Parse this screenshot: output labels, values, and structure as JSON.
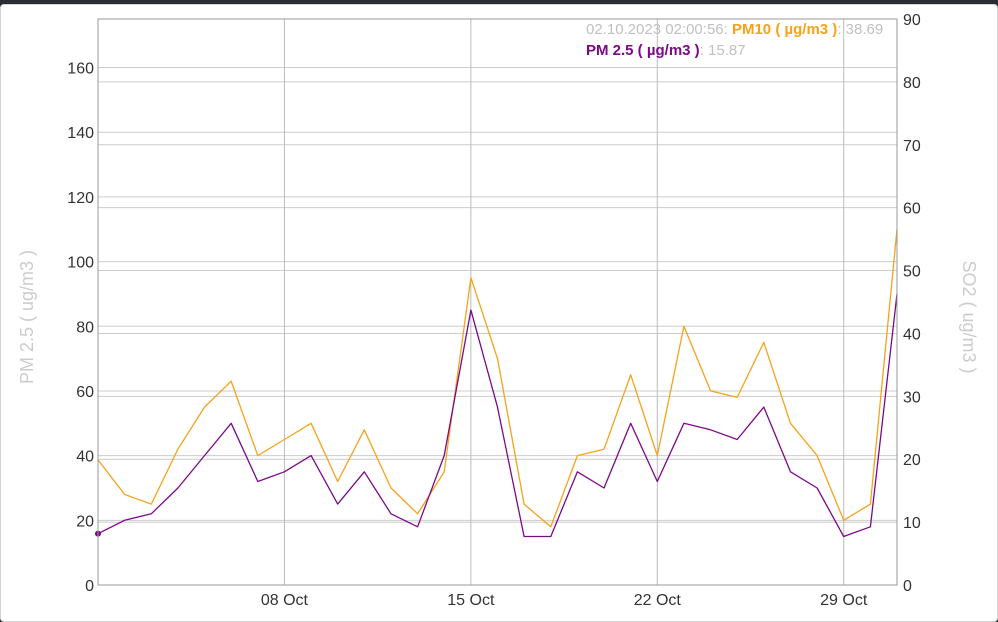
{
  "chart_data": {
    "type": "line",
    "x_range": [
      "2023-10-01",
      "2023-10-31"
    ],
    "x_ticks": [
      {
        "date": "2023-10-08",
        "label": "08 Oct"
      },
      {
        "date": "2023-10-15",
        "label": "15 Oct"
      },
      {
        "date": "2023-10-22",
        "label": "22 Oct"
      },
      {
        "date": "2023-10-29",
        "label": "29 Oct"
      }
    ],
    "y_left": {
      "label": "PM 2.5 ( ug/m3 )",
      "ylim": [
        0,
        175
      ],
      "ticks": [
        0,
        20,
        40,
        60,
        80,
        100,
        120,
        140,
        160
      ]
    },
    "y_right": {
      "label": "SO2 ( ug/m3 )",
      "ylim": [
        0,
        90
      ],
      "ticks": [
        0,
        10,
        20,
        30,
        40,
        50,
        60,
        70,
        80,
        90
      ]
    },
    "grid": true,
    "series": [
      {
        "name": "PM10 ( µg/m3 )",
        "color": "#f5a31a",
        "axis": "left",
        "x": [
          "2023-10-01",
          "2023-10-02",
          "2023-10-03",
          "2023-10-04",
          "2023-10-05",
          "2023-10-06",
          "2023-10-07",
          "2023-10-08",
          "2023-10-09",
          "2023-10-10",
          "2023-10-11",
          "2023-10-12",
          "2023-10-13",
          "2023-10-14",
          "2023-10-15",
          "2023-10-16",
          "2023-10-17",
          "2023-10-18",
          "2023-10-19",
          "2023-10-20",
          "2023-10-21",
          "2023-10-22",
          "2023-10-23",
          "2023-10-24",
          "2023-10-25",
          "2023-10-26",
          "2023-10-27",
          "2023-10-28",
          "2023-10-29",
          "2023-10-30",
          "2023-10-31"
        ],
        "values": [
          38.69,
          28,
          25,
          42,
          55,
          63,
          40,
          45,
          50,
          32,
          48,
          30,
          22,
          35,
          95,
          70,
          25,
          18,
          40,
          42,
          65,
          40,
          80,
          60,
          58,
          75,
          50,
          40,
          20,
          25,
          110
        ]
      },
      {
        "name": "PM 2.5 ( µg/m3 )",
        "color": "#7b0a86",
        "axis": "left",
        "x": [
          "2023-10-01",
          "2023-10-02",
          "2023-10-03",
          "2023-10-04",
          "2023-10-05",
          "2023-10-06",
          "2023-10-07",
          "2023-10-08",
          "2023-10-09",
          "2023-10-10",
          "2023-10-11",
          "2023-10-12",
          "2023-10-13",
          "2023-10-14",
          "2023-10-15",
          "2023-10-16",
          "2023-10-17",
          "2023-10-18",
          "2023-10-19",
          "2023-10-20",
          "2023-10-21",
          "2023-10-22",
          "2023-10-23",
          "2023-10-24",
          "2023-10-25",
          "2023-10-26",
          "2023-10-27",
          "2023-10-28",
          "2023-10-29",
          "2023-10-30",
          "2023-10-31"
        ],
        "values": [
          15.87,
          20,
          22,
          30,
          40,
          50,
          32,
          35,
          40,
          25,
          35,
          22,
          18,
          40,
          85,
          55,
          15,
          15,
          35,
          30,
          50,
          32,
          50,
          48,
          45,
          55,
          35,
          30,
          15,
          18,
          90
        ]
      }
    ]
  },
  "tooltip": {
    "timestamp": "02.10.2023 02:00:56:",
    "series1_name": "PM10 ( µg/m3 )",
    "series1_value": ": 38.69",
    "series2_name": "PM 2.5 ( µg/m3 )",
    "series2_value": ": 15.87"
  }
}
